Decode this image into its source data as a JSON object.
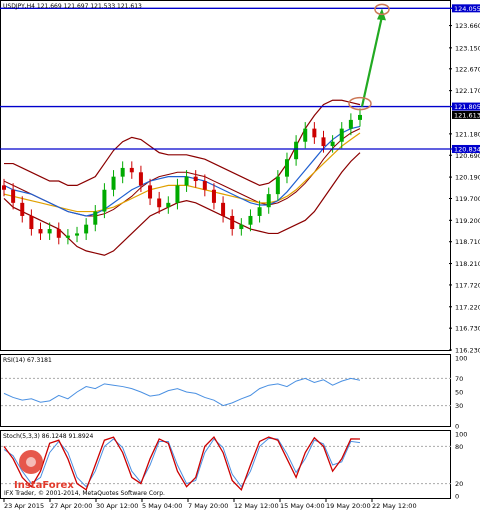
{
  "chart_data": {
    "type": "line",
    "main_header": "USDJPY,H4  121.669 121.697 121.533 121.613",
    "price_axis_ticks": [
      "124.055",
      "123.660",
      "123.150",
      "122.670",
      "122.170",
      "121.805",
      "121.613",
      "121.180",
      "120.834",
      "120.690",
      "120.190",
      "119.700",
      "119.200",
      "118.710",
      "118.210",
      "117.720",
      "117.220",
      "116.730",
      "116.230"
    ],
    "price_range": [
      116.23,
      124.2
    ],
    "levels": [
      {
        "price": 124.055,
        "label": "124.055",
        "color": "#0000cc"
      },
      {
        "price": 121.805,
        "label": "121.805",
        "color": "#0000cc"
      },
      {
        "price": 120.834,
        "label": "120.834",
        "color": "#0000cc"
      }
    ],
    "current_price": {
      "price": 121.613,
      "label": "121.613"
    },
    "bands": {
      "mid": [
        120.1,
        120.0,
        119.9,
        119.8,
        119.7,
        119.6,
        119.5,
        119.4,
        119.35,
        119.3,
        119.3,
        119.35,
        119.45,
        119.6,
        119.75,
        119.95,
        120.1,
        120.2,
        120.25,
        120.3,
        120.3,
        120.25,
        120.2,
        120.1,
        120.0,
        119.9,
        119.8,
        119.7,
        119.6,
        119.55,
        119.6,
        119.7,
        119.85,
        120.05,
        120.3,
        120.6,
        120.85,
        121.05,
        121.2,
        121.3
      ],
      "upper": [
        120.5,
        120.5,
        120.4,
        120.3,
        120.2,
        120.1,
        120.1,
        120.0,
        120.0,
        120.1,
        120.2,
        120.5,
        120.8,
        121.0,
        121.1,
        121.05,
        120.9,
        120.75,
        120.7,
        120.7,
        120.7,
        120.65,
        120.6,
        120.5,
        120.4,
        120.3,
        120.2,
        120.1,
        120.0,
        120.05,
        120.2,
        120.5,
        120.9,
        121.3,
        121.6,
        121.85,
        121.95,
        121.95,
        121.9,
        121.85
      ],
      "lower": [
        119.7,
        119.5,
        119.4,
        119.3,
        119.2,
        119.1,
        119.0,
        118.8,
        118.6,
        118.5,
        118.45,
        118.4,
        118.5,
        118.7,
        118.9,
        119.1,
        119.3,
        119.4,
        119.5,
        119.6,
        119.65,
        119.6,
        119.5,
        119.4,
        119.3,
        119.2,
        119.1,
        119.0,
        118.95,
        118.9,
        118.9,
        119.0,
        119.1,
        119.2,
        119.4,
        119.7,
        120.0,
        120.3,
        120.55,
        120.75
      ]
    },
    "ma_fast": [
      120.0,
      119.9,
      119.85,
      119.8,
      119.7,
      119.6,
      119.5,
      119.4,
      119.35,
      119.3,
      119.35,
      119.45,
      119.6,
      119.75,
      119.9,
      120.0,
      120.1,
      120.15,
      120.2,
      120.2,
      120.2,
      120.15,
      120.1,
      120.0,
      119.9,
      119.8,
      119.7,
      119.6,
      119.55,
      119.55,
      119.65,
      119.85,
      120.1,
      120.35,
      120.6,
      120.85,
      121.05,
      121.2,
      121.3,
      121.35
    ],
    "ma_slow": [
      119.8,
      119.75,
      119.7,
      119.65,
      119.6,
      119.55,
      119.5,
      119.45,
      119.4,
      119.4,
      119.4,
      119.45,
      119.5,
      119.6,
      119.7,
      119.8,
      119.9,
      119.95,
      120.0,
      120.0,
      120.0,
      119.95,
      119.9,
      119.85,
      119.8,
      119.75,
      119.7,
      119.65,
      119.6,
      119.6,
      119.65,
      119.75,
      119.9,
      120.1,
      120.3,
      120.5,
      120.7,
      120.9,
      121.05,
      121.2
    ],
    "candles_close": [
      119.9,
      119.6,
      119.3,
      119.0,
      118.9,
      119.0,
      118.8,
      118.85,
      118.9,
      119.1,
      119.4,
      119.9,
      120.2,
      120.4,
      120.3,
      120.0,
      119.7,
      119.5,
      119.6,
      120.0,
      120.2,
      120.1,
      119.9,
      119.6,
      119.3,
      119.0,
      119.1,
      119.3,
      119.5,
      119.8,
      120.2,
      120.6,
      121.0,
      121.3,
      121.1,
      120.9,
      121.0,
      121.3,
      121.5,
      121.613
    ],
    "forecast_arrow": {
      "from": 121.805,
      "to": 124.055
    },
    "x_tick_labels": [
      "23 Apr 2015",
      "27 Apr 20:00",
      "30 Apr 12:00",
      "5 May 04:00",
      "7 May 20:00",
      "12 May 12:00",
      "15 May 04:00",
      "19 May 20:00",
      "22 May 12:00"
    ],
    "rsi": {
      "header": "RSI(14) 67.3181",
      "range": [
        0,
        100
      ],
      "ticks": [
        "100",
        "70",
        "50",
        "30",
        "0"
      ],
      "levels": [
        70,
        30
      ],
      "values": [
        48,
        42,
        38,
        40,
        35,
        37,
        45,
        40,
        50,
        58,
        55,
        62,
        60,
        58,
        55,
        50,
        44,
        46,
        52,
        55,
        50,
        48,
        42,
        38,
        30,
        34,
        40,
        45,
        55,
        60,
        62,
        58,
        66,
        70,
        64,
        68,
        60,
        66,
        70,
        67.3
      ]
    },
    "stochastic": {
      "header": "Stoch(5,3,3) 86.1248 91.8924",
      "range": [
        0,
        100
      ],
      "ticks": [
        "100",
        "80",
        "20",
        "0"
      ],
      "levels": [
        80,
        20
      ],
      "k": [
        80,
        60,
        30,
        15,
        40,
        85,
        90,
        60,
        20,
        10,
        50,
        90,
        95,
        70,
        30,
        20,
        60,
        92,
        85,
        40,
        15,
        30,
        80,
        95,
        70,
        25,
        10,
        50,
        88,
        95,
        90,
        60,
        30,
        70,
        94,
        80,
        40,
        60,
        92,
        91.9
      ],
      "d": [
        75,
        65,
        40,
        20,
        30,
        70,
        88,
        70,
        30,
        15,
        40,
        80,
        92,
        78,
        40,
        22,
        50,
        88,
        88,
        50,
        20,
        25,
        70,
        92,
        78,
        35,
        15,
        40,
        80,
        93,
        92,
        68,
        38,
        60,
        90,
        84,
        50,
        55,
        88,
        86.1
      ]
    }
  },
  "logo_text": "InstaForex",
  "footer": "IFX Trader, © 2001-2014, MetaQuotes Software Corp.",
  "colors": {
    "bands": "#8b0000",
    "ma_fast": "#1f5fd0",
    "ma_slow": "#e0a000",
    "bull": "#00aa00",
    "bear": "#cc0000",
    "level": "#0000cc",
    "arrow": "#22aa22",
    "rsi": "#4a90e2",
    "stoch_k": "#cc0000",
    "stoch_d": "#4a90e2",
    "ellipse": "#cc7755"
  }
}
